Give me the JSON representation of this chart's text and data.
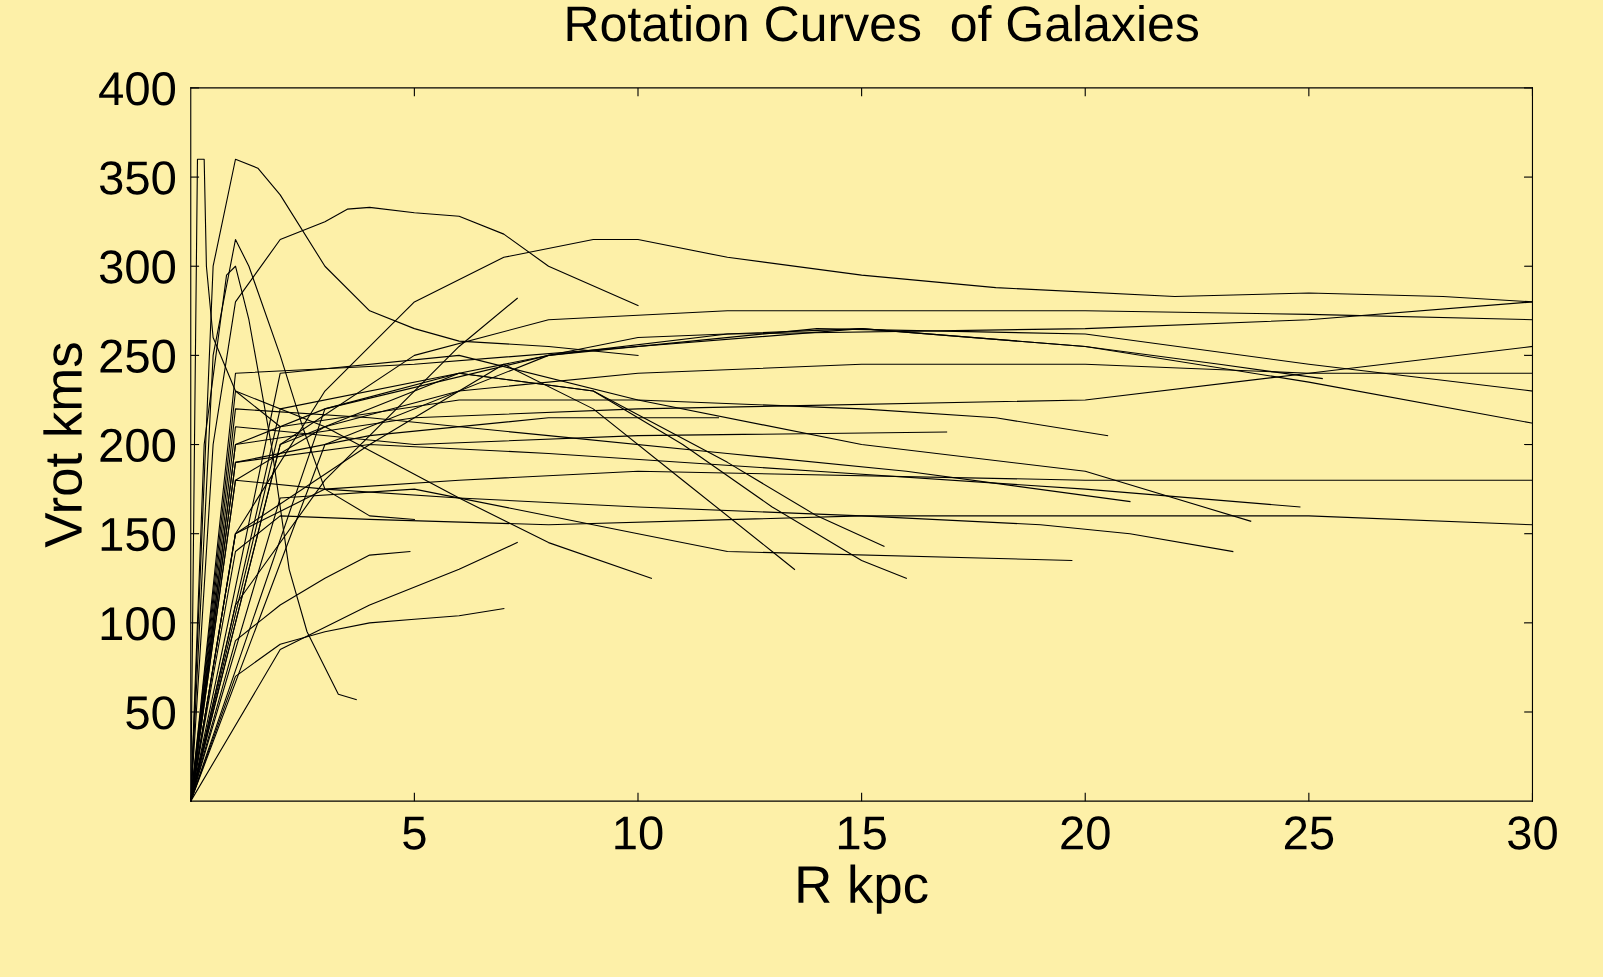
{
  "chart_data": {
    "type": "line",
    "title": "Rotation Curves  of Galaxies",
    "xlabel": "R kpc",
    "ylabel": "Vrot kms",
    "xlim": [
      0,
      30
    ],
    "ylim": [
      0,
      400
    ],
    "xticks": [
      5,
      10,
      15,
      20,
      25,
      30
    ],
    "yticks": [
      50,
      100,
      150,
      200,
      250,
      300,
      350,
      400
    ],
    "grid": false,
    "legend": false,
    "marker": "none",
    "line_style": "solid",
    "series": [
      {
        "color": "#000000",
        "x": [
          0,
          1,
          3,
          5,
          7,
          9,
          10,
          12,
          15,
          18,
          22,
          25,
          28,
          30
        ],
        "values": [
          0,
          150,
          230,
          280,
          305,
          315,
          315,
          305,
          295,
          288,
          283,
          285,
          283,
          280
        ]
      },
      {
        "color": "#000000",
        "x": [
          0,
          0.5,
          1,
          1.5,
          2,
          3,
          4,
          5,
          6,
          8,
          10
        ],
        "values": [
          0,
          300,
          360,
          355,
          340,
          300,
          275,
          265,
          258,
          255,
          250
        ]
      },
      {
        "color": "#000000",
        "x": [
          0,
          0.5,
          1,
          2,
          3,
          3.5,
          4,
          5,
          6,
          7,
          8,
          10
        ],
        "values": [
          0,
          200,
          280,
          315,
          325,
          332,
          333,
          330,
          328,
          318,
          300,
          278
        ]
      },
      {
        "color": "#000000",
        "x": [
          0,
          0.3,
          0.8,
          1,
          1.3,
          1.8,
          2.2,
          2.6,
          3,
          3.3,
          3.7
        ],
        "values": [
          0,
          200,
          295,
          300,
          270,
          200,
          130,
          95,
          75,
          60,
          57
        ]
      },
      {
        "color": "#000000",
        "x": [
          0,
          0.5,
          1,
          1.3,
          2,
          2.5,
          3,
          4,
          5
        ],
        "values": [
          0,
          250,
          315,
          300,
          250,
          210,
          175,
          160,
          158
        ]
      },
      {
        "color": "#000000",
        "x": [
          0,
          1,
          3,
          6,
          10,
          15,
          20,
          25,
          30
        ],
        "values": [
          0,
          180,
          210,
          230,
          240,
          245,
          245,
          240,
          240
        ]
      },
      {
        "color": "#000000",
        "x": [
          0,
          2,
          5,
          8,
          12,
          20,
          25,
          30
        ],
        "values": [
          0,
          200,
          250,
          270,
          275,
          275,
          273,
          270
        ]
      },
      {
        "color": "#000000",
        "x": [
          0,
          1,
          3,
          6,
          10,
          20,
          30
        ],
        "values": [
          0,
          150,
          175,
          180,
          185,
          180,
          180
        ]
      },
      {
        "color": "#000000",
        "x": [
          0,
          1,
          2,
          4,
          8,
          15,
          25,
          30
        ],
        "values": [
          0,
          140,
          160,
          158,
          155,
          160,
          160,
          155
        ]
      },
      {
        "color": "#000000",
        "x": [
          0,
          1,
          3,
          6,
          10,
          15,
          19,
          21,
          23.3
        ],
        "values": [
          0,
          180,
          175,
          170,
          165,
          160,
          155,
          150,
          140
        ]
      },
      {
        "color": "#000000",
        "x": [
          0,
          2,
          6,
          10,
          15,
          18,
          20.5
        ],
        "values": [
          0,
          210,
          225,
          225,
          220,
          215,
          205
        ]
      },
      {
        "color": "#000000",
        "x": [
          0,
          1,
          3,
          6,
          9,
          11,
          13,
          15,
          16
        ],
        "values": [
          0,
          200,
          220,
          240,
          230,
          200,
          165,
          135,
          125
        ]
      },
      {
        "color": "#000000",
        "x": [
          0,
          1,
          3,
          6,
          8,
          10.3
        ],
        "values": [
          0,
          230,
          210,
          170,
          145,
          125
        ]
      },
      {
        "color": "#000000",
        "x": [
          0,
          1,
          4,
          7,
          9,
          11,
          13,
          13.5
        ],
        "values": [
          0,
          150,
          200,
          245,
          220,
          180,
          140,
          130
        ]
      },
      {
        "color": "#000000",
        "x": [
          0,
          2,
          6,
          9,
          12,
          14,
          15.5
        ],
        "values": [
          0,
          220,
          240,
          230,
          190,
          160,
          143
        ]
      },
      {
        "color": "#000000",
        "x": [
          0,
          2,
          5,
          10,
          12,
          19.7
        ],
        "values": [
          0,
          170,
          175,
          150,
          140,
          135
        ]
      },
      {
        "color": "#000000",
        "x": [
          0,
          1,
          2,
          3,
          4,
          5,
          6,
          7
        ],
        "values": [
          0,
          70,
          88,
          95,
          100,
          102,
          104,
          108
        ]
      },
      {
        "color": "#000000",
        "x": [
          0,
          1,
          2,
          3,
          4,
          4.9
        ],
        "values": [
          0,
          90,
          110,
          125,
          138,
          140
        ]
      },
      {
        "color": "#000000",
        "x": [
          0,
          2,
          4,
          6,
          7.3
        ],
        "values": [
          0,
          85,
          110,
          130,
          145
        ]
      },
      {
        "color": "#000000",
        "x": [
          0,
          1,
          3,
          5,
          6,
          7.3
        ],
        "values": [
          0,
          110,
          180,
          230,
          255,
          282
        ]
      },
      {
        "color": "#000000",
        "x": [
          0,
          1,
          4,
          8,
          11.8
        ],
        "values": [
          0,
          190,
          205,
          215,
          215
        ]
      },
      {
        "color": "#000000",
        "x": [
          0,
          1,
          5,
          10,
          16.9
        ],
        "values": [
          0,
          210,
          200,
          205,
          207
        ]
      },
      {
        "color": "#000000",
        "x": [
          0,
          2,
          6,
          10,
          15,
          20,
          23,
          25.3
        ],
        "values": [
          0,
          200,
          240,
          260,
          265,
          255,
          245,
          237
        ]
      },
      {
        "color": "#000000",
        "x": [
          0,
          1,
          4,
          8,
          14,
          20,
          24.8
        ],
        "values": [
          0,
          190,
          200,
          195,
          185,
          175,
          165
        ]
      },
      {
        "color": "#000000",
        "x": [
          0,
          1,
          5,
          10,
          15,
          20,
          25,
          30
        ],
        "values": [
          0,
          240,
          245,
          255,
          265,
          255,
          235,
          212
        ]
      },
      {
        "color": "#000000",
        "x": [
          0,
          1,
          4,
          8,
          12,
          16,
          21
        ],
        "values": [
          0,
          220,
          215,
          205,
          195,
          185,
          168
        ]
      },
      {
        "color": "#000000",
        "x": [
          0,
          2,
          6,
          10,
          15,
          20,
          23.7
        ],
        "values": [
          0,
          240,
          250,
          225,
          200,
          185,
          157
        ]
      },
      {
        "color": "#000000",
        "x": [
          0,
          3,
          8,
          14,
          20,
          25,
          30
        ],
        "values": [
          0,
          220,
          250,
          265,
          262,
          245,
          230
        ]
      },
      {
        "color": "#000000",
        "x": [
          0,
          3,
          8,
          12,
          20,
          25,
          30
        ],
        "values": [
          0,
          200,
          250,
          262,
          265,
          270,
          280
        ]
      },
      {
        "color": "#000000",
        "x": [
          0,
          1,
          5,
          10,
          20,
          25,
          30
        ],
        "values": [
          0,
          200,
          215,
          220,
          225,
          240,
          255
        ]
      },
      {
        "color": "#000000",
        "x": [
          0,
          0.15,
          0.3,
          0.35,
          0.5,
          1,
          2
        ],
        "values": [
          0,
          360,
          360,
          300,
          260,
          230,
          210
        ]
      }
    ]
  }
}
